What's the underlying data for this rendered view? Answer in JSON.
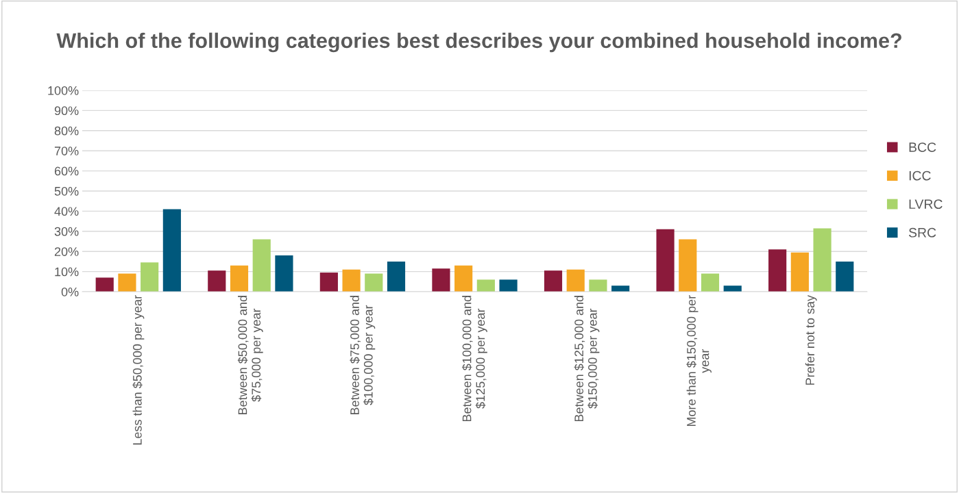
{
  "chart_data": {
    "type": "bar",
    "title": "Which of the following categories best describes your combined household income?",
    "categories": [
      "Less than $50,000 per year",
      "Between $50,000 and\n$75,000 per year",
      "Between $75,000 and\n$100,000 per year",
      "Between $100,000 and\n$125,000 per year",
      "Between $125,000 and\n$150,000 per year",
      "More than $150,000 per\nyear",
      "Prefer not to say"
    ],
    "series": [
      {
        "name": "BCC",
        "color": "#8b1a3b",
        "values": [
          7,
          10.5,
          9.5,
          11.5,
          10.5,
          31,
          21
        ]
      },
      {
        "name": "ICC",
        "color": "#f5a623",
        "values": [
          9,
          13,
          11,
          13,
          11,
          26,
          19.5
        ]
      },
      {
        "name": "LVRC",
        "color": "#a9d46b",
        "values": [
          14.5,
          26,
          9,
          6,
          6,
          9,
          31.5
        ]
      },
      {
        "name": "SRC",
        "color": "#00587c",
        "values": [
          41,
          18,
          15,
          6,
          3,
          3,
          15
        ]
      }
    ],
    "ylim": [
      0,
      100
    ],
    "yticks": [
      {
        "value": 0,
        "label": "0%"
      },
      {
        "value": 10,
        "label": "10%"
      },
      {
        "value": 20,
        "label": "20%"
      },
      {
        "value": 30,
        "label": "30%"
      },
      {
        "value": 40,
        "label": "40%"
      },
      {
        "value": 50,
        "label": "50%"
      },
      {
        "value": 60,
        "label": "60%"
      },
      {
        "value": 70,
        "label": "70%"
      },
      {
        "value": 80,
        "label": "80%"
      },
      {
        "value": 90,
        "label": "90%"
      },
      {
        "value": 100,
        "label": "100%"
      }
    ],
    "grid": "y",
    "legend": "right"
  }
}
